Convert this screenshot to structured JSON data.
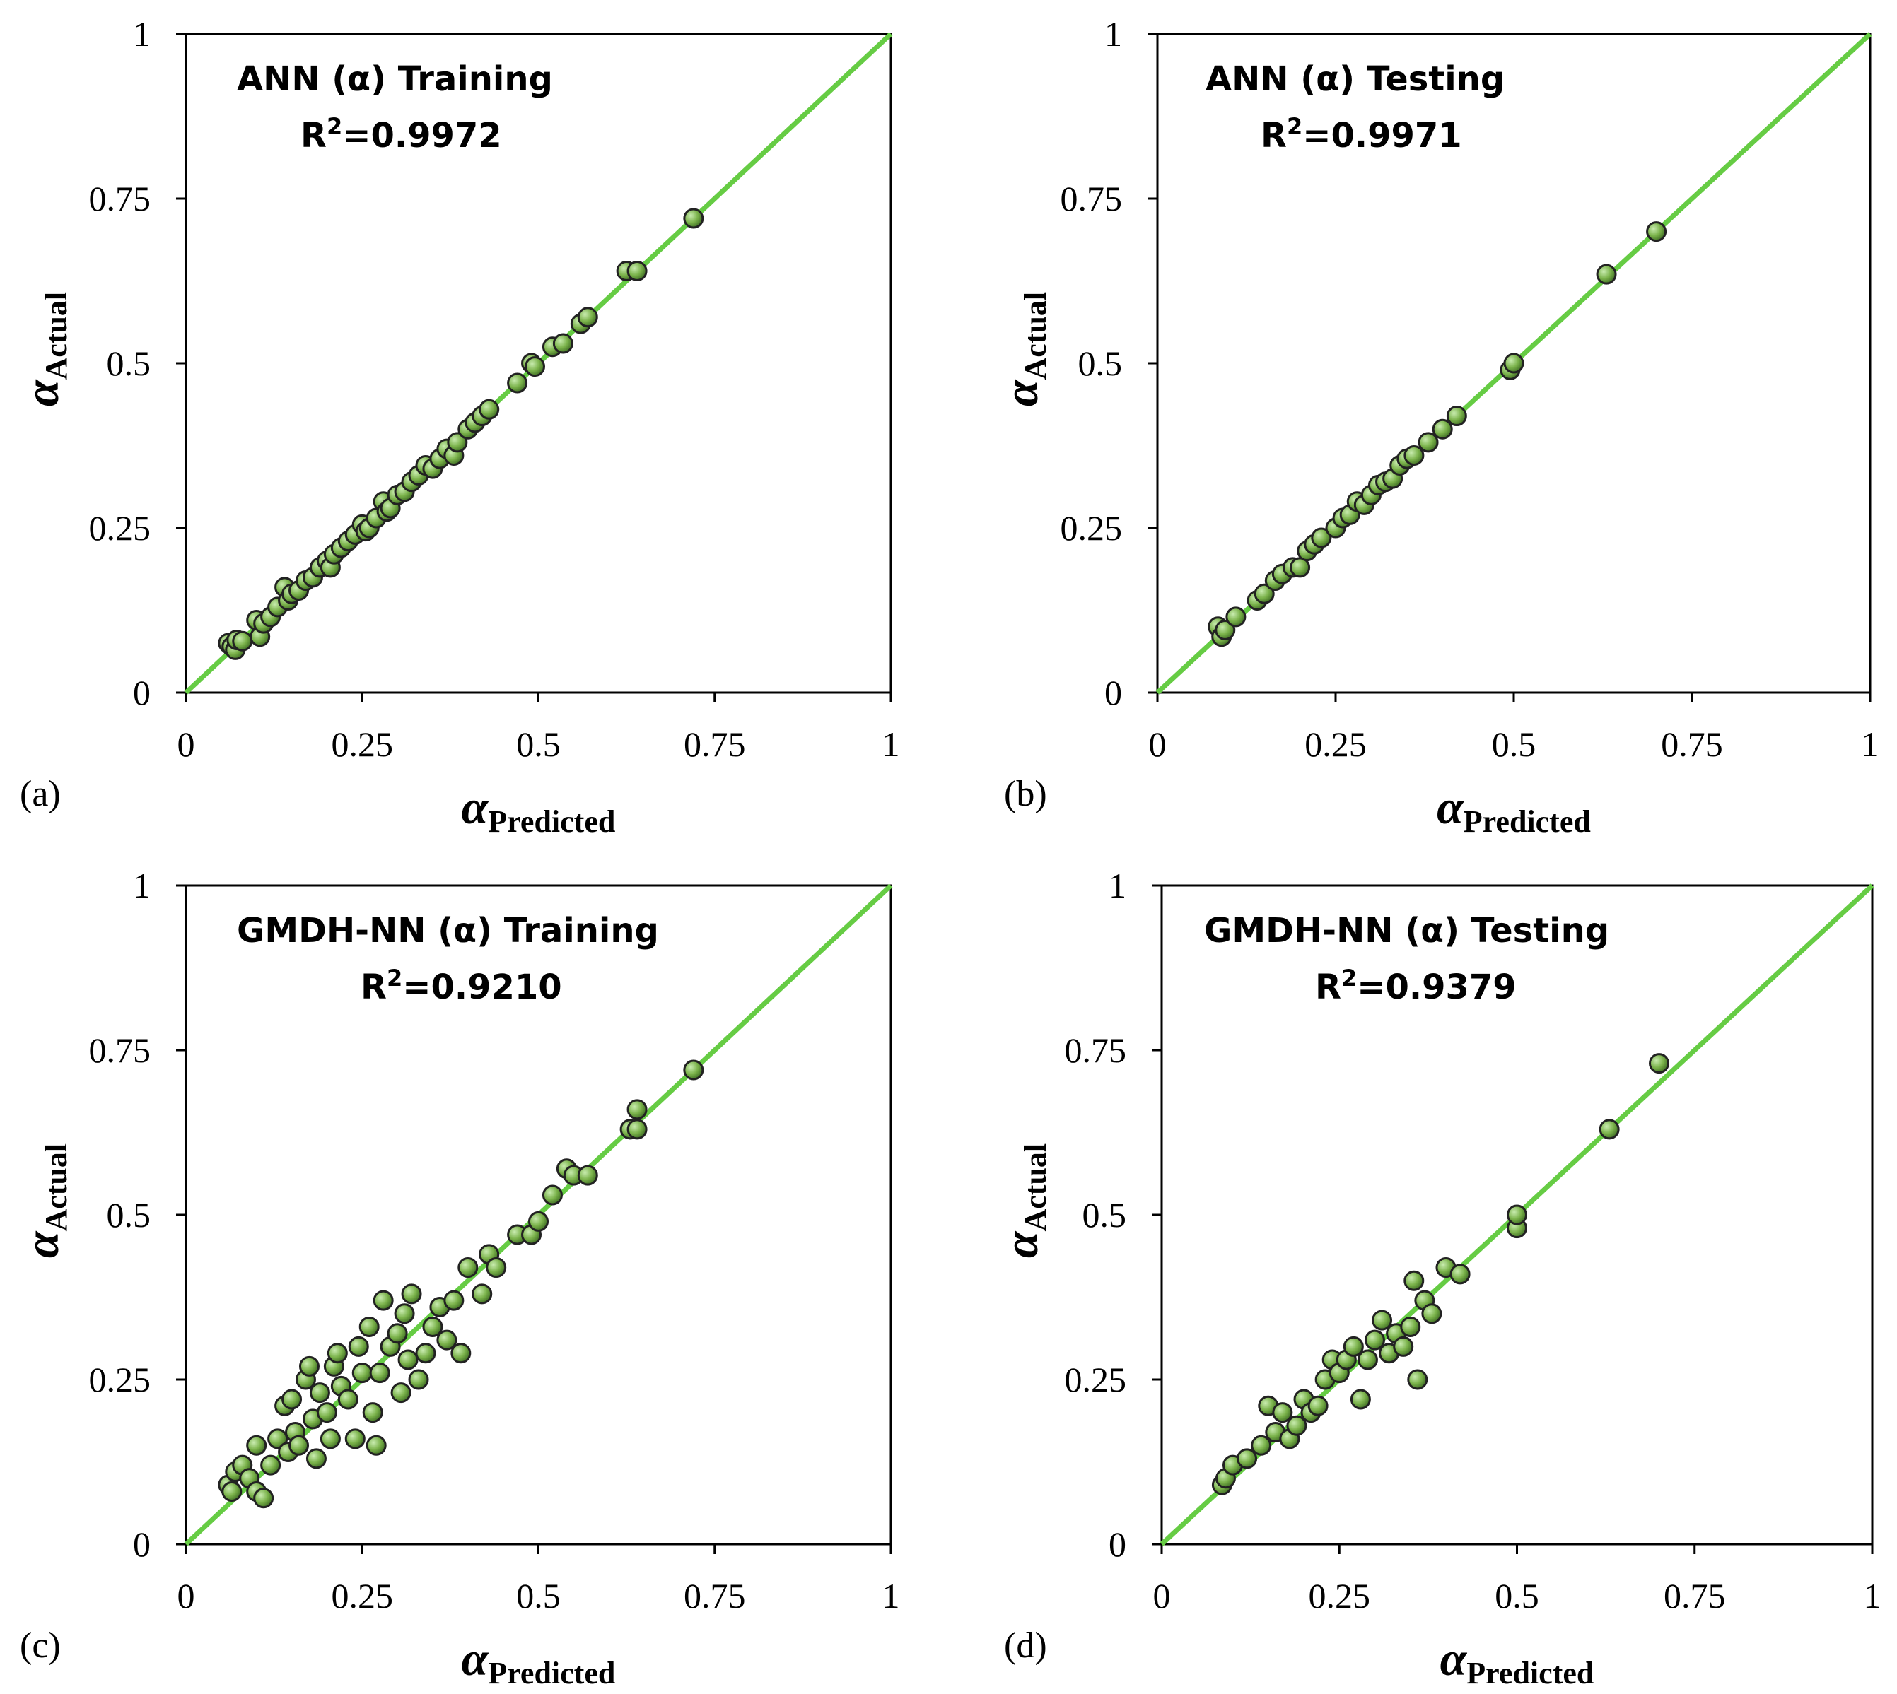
{
  "colors": {
    "ideal_line": "#66cc44",
    "marker_fill": "#7ab24a",
    "marker_edge": "#222222",
    "frame": "#000000"
  },
  "chart_data": [
    {
      "type": "scatter",
      "panel_label": "(a)",
      "title": "ANN (α) Training",
      "r2_label": "R",
      "r2_sup": "2",
      "r2_value": "=0.9972",
      "xlabel_symbol": "α",
      "xlabel_sub": "Predicted",
      "ylabel_symbol": "α",
      "ylabel_sub": "Actual",
      "xlim": [
        0,
        1
      ],
      "ylim": [
        0,
        1
      ],
      "xticks": [
        "0",
        "0.25",
        "0.5",
        "0.75",
        "1"
      ],
      "yticks": [
        "0",
        "0.25",
        "0.5",
        "0.75",
        "1"
      ],
      "reference_line": "y = x",
      "points": [
        [
          0.06,
          0.075
        ],
        [
          0.065,
          0.07
        ],
        [
          0.07,
          0.065
        ],
        [
          0.072,
          0.08
        ],
        [
          0.08,
          0.078
        ],
        [
          0.1,
          0.11
        ],
        [
          0.105,
          0.085
        ],
        [
          0.11,
          0.105
        ],
        [
          0.12,
          0.115
        ],
        [
          0.13,
          0.13
        ],
        [
          0.14,
          0.16
        ],
        [
          0.145,
          0.14
        ],
        [
          0.15,
          0.15
        ],
        [
          0.16,
          0.155
        ],
        [
          0.17,
          0.17
        ],
        [
          0.18,
          0.175
        ],
        [
          0.19,
          0.19
        ],
        [
          0.2,
          0.2
        ],
        [
          0.205,
          0.19
        ],
        [
          0.21,
          0.21
        ],
        [
          0.22,
          0.22
        ],
        [
          0.23,
          0.23
        ],
        [
          0.24,
          0.24
        ],
        [
          0.25,
          0.255
        ],
        [
          0.255,
          0.245
        ],
        [
          0.26,
          0.25
        ],
        [
          0.27,
          0.265
        ],
        [
          0.28,
          0.29
        ],
        [
          0.285,
          0.275
        ],
        [
          0.29,
          0.28
        ],
        [
          0.3,
          0.3
        ],
        [
          0.31,
          0.305
        ],
        [
          0.32,
          0.32
        ],
        [
          0.33,
          0.33
        ],
        [
          0.34,
          0.345
        ],
        [
          0.35,
          0.34
        ],
        [
          0.36,
          0.355
        ],
        [
          0.37,
          0.37
        ],
        [
          0.38,
          0.36
        ],
        [
          0.385,
          0.38
        ],
        [
          0.4,
          0.4
        ],
        [
          0.41,
          0.41
        ],
        [
          0.42,
          0.42
        ],
        [
          0.43,
          0.43
        ],
        [
          0.47,
          0.47
        ],
        [
          0.49,
          0.5
        ],
        [
          0.495,
          0.495
        ],
        [
          0.52,
          0.525
        ],
        [
          0.535,
          0.53
        ],
        [
          0.56,
          0.56
        ],
        [
          0.57,
          0.57
        ],
        [
          0.625,
          0.64
        ],
        [
          0.64,
          0.64
        ],
        [
          0.72,
          0.72
        ]
      ]
    },
    {
      "type": "scatter",
      "panel_label": "(b)",
      "title": "ANN (α) Testing",
      "r2_label": "R",
      "r2_sup": "2",
      "r2_value": "=0.9971",
      "xlabel_symbol": "α",
      "xlabel_sub": "Predicted",
      "ylabel_symbol": "α",
      "ylabel_sub": "Actual",
      "xlim": [
        0,
        1
      ],
      "ylim": [
        0,
        1
      ],
      "xticks": [
        "0",
        "0.25",
        "0.5",
        "0.75",
        "1"
      ],
      "yticks": [
        "0",
        "0.25",
        "0.5",
        "0.75",
        "1"
      ],
      "reference_line": "y = x",
      "points": [
        [
          0.085,
          0.1
        ],
        [
          0.09,
          0.085
        ],
        [
          0.095,
          0.095
        ],
        [
          0.11,
          0.115
        ],
        [
          0.14,
          0.14
        ],
        [
          0.15,
          0.15
        ],
        [
          0.165,
          0.17
        ],
        [
          0.175,
          0.18
        ],
        [
          0.19,
          0.19
        ],
        [
          0.2,
          0.19
        ],
        [
          0.21,
          0.215
        ],
        [
          0.22,
          0.225
        ],
        [
          0.23,
          0.235
        ],
        [
          0.25,
          0.25
        ],
        [
          0.26,
          0.265
        ],
        [
          0.27,
          0.27
        ],
        [
          0.28,
          0.29
        ],
        [
          0.29,
          0.285
        ],
        [
          0.3,
          0.3
        ],
        [
          0.31,
          0.315
        ],
        [
          0.32,
          0.32
        ],
        [
          0.33,
          0.325
        ],
        [
          0.34,
          0.345
        ],
        [
          0.35,
          0.355
        ],
        [
          0.36,
          0.36
        ],
        [
          0.38,
          0.38
        ],
        [
          0.4,
          0.4
        ],
        [
          0.42,
          0.42
        ],
        [
          0.495,
          0.49
        ],
        [
          0.5,
          0.5
        ],
        [
          0.63,
          0.635
        ],
        [
          0.7,
          0.7
        ]
      ]
    },
    {
      "type": "scatter",
      "panel_label": "(c)",
      "title": "GMDH-NN (α) Training",
      "r2_label": "R",
      "r2_sup": "2",
      "r2_value": "=0.9210",
      "xlabel_symbol": "α",
      "xlabel_sub": "Predicted",
      "ylabel_symbol": "α",
      "ylabel_sub": "Actual",
      "xlim": [
        0,
        1
      ],
      "ylim": [
        0,
        1
      ],
      "xticks": [
        "0",
        "0.25",
        "0.5",
        "0.75",
        "1"
      ],
      "yticks": [
        "0",
        "0.25",
        "0.5",
        "0.75",
        "1"
      ],
      "reference_line": "y = x",
      "points": [
        [
          0.06,
          0.09
        ],
        [
          0.065,
          0.08
        ],
        [
          0.07,
          0.11
        ],
        [
          0.08,
          0.12
        ],
        [
          0.09,
          0.1
        ],
        [
          0.1,
          0.15
        ],
        [
          0.1,
          0.08
        ],
        [
          0.11,
          0.07
        ],
        [
          0.12,
          0.12
        ],
        [
          0.13,
          0.16
        ],
        [
          0.14,
          0.21
        ],
        [
          0.145,
          0.14
        ],
        [
          0.15,
          0.22
        ],
        [
          0.155,
          0.17
        ],
        [
          0.16,
          0.15
        ],
        [
          0.17,
          0.25
        ],
        [
          0.175,
          0.27
        ],
        [
          0.18,
          0.19
        ],
        [
          0.185,
          0.13
        ],
        [
          0.19,
          0.23
        ],
        [
          0.2,
          0.2
        ],
        [
          0.205,
          0.16
        ],
        [
          0.21,
          0.27
        ],
        [
          0.215,
          0.29
        ],
        [
          0.22,
          0.24
        ],
        [
          0.23,
          0.22
        ],
        [
          0.24,
          0.16
        ],
        [
          0.245,
          0.3
        ],
        [
          0.25,
          0.26
        ],
        [
          0.26,
          0.33
        ],
        [
          0.265,
          0.2
        ],
        [
          0.27,
          0.15
        ],
        [
          0.275,
          0.26
        ],
        [
          0.28,
          0.37
        ],
        [
          0.29,
          0.3
        ],
        [
          0.3,
          0.32
        ],
        [
          0.305,
          0.23
        ],
        [
          0.31,
          0.35
        ],
        [
          0.315,
          0.28
        ],
        [
          0.32,
          0.38
        ],
        [
          0.33,
          0.25
        ],
        [
          0.34,
          0.29
        ],
        [
          0.35,
          0.33
        ],
        [
          0.36,
          0.36
        ],
        [
          0.37,
          0.31
        ],
        [
          0.38,
          0.37
        ],
        [
          0.39,
          0.29
        ],
        [
          0.4,
          0.42
        ],
        [
          0.42,
          0.38
        ],
        [
          0.43,
          0.44
        ],
        [
          0.44,
          0.42
        ],
        [
          0.47,
          0.47
        ],
        [
          0.49,
          0.47
        ],
        [
          0.5,
          0.49
        ],
        [
          0.52,
          0.53
        ],
        [
          0.54,
          0.57
        ],
        [
          0.55,
          0.56
        ],
        [
          0.57,
          0.56
        ],
        [
          0.63,
          0.63
        ],
        [
          0.64,
          0.66
        ],
        [
          0.64,
          0.63
        ],
        [
          0.72,
          0.72
        ]
      ]
    },
    {
      "type": "scatter",
      "panel_label": "(d)",
      "title": "GMDH-NN (α) Testing",
      "r2_label": "R",
      "r2_sup": "2",
      "r2_value": "=0.9379",
      "xlabel_symbol": "α",
      "xlabel_sub": "Predicted",
      "ylabel_symbol": "α",
      "ylabel_sub": "Actual",
      "xlim": [
        0,
        1
      ],
      "ylim": [
        0,
        1
      ],
      "xticks": [
        "0",
        "0.25",
        "0.5",
        "0.75",
        "1"
      ],
      "yticks": [
        "0",
        "0.25",
        "0.5",
        "0.75",
        "1"
      ],
      "reference_line": "y = x",
      "points": [
        [
          0.085,
          0.09
        ],
        [
          0.09,
          0.1
        ],
        [
          0.1,
          0.12
        ],
        [
          0.12,
          0.13
        ],
        [
          0.14,
          0.15
        ],
        [
          0.15,
          0.21
        ],
        [
          0.16,
          0.17
        ],
        [
          0.17,
          0.2
        ],
        [
          0.18,
          0.16
        ],
        [
          0.19,
          0.18
        ],
        [
          0.2,
          0.22
        ],
        [
          0.21,
          0.2
        ],
        [
          0.22,
          0.21
        ],
        [
          0.23,
          0.25
        ],
        [
          0.24,
          0.28
        ],
        [
          0.25,
          0.26
        ],
        [
          0.26,
          0.28
        ],
        [
          0.27,
          0.3
        ],
        [
          0.28,
          0.22
        ],
        [
          0.29,
          0.28
        ],
        [
          0.3,
          0.31
        ],
        [
          0.31,
          0.34
        ],
        [
          0.32,
          0.29
        ],
        [
          0.33,
          0.32
        ],
        [
          0.34,
          0.3
        ],
        [
          0.35,
          0.33
        ],
        [
          0.355,
          0.4
        ],
        [
          0.36,
          0.25
        ],
        [
          0.37,
          0.37
        ],
        [
          0.38,
          0.35
        ],
        [
          0.4,
          0.42
        ],
        [
          0.42,
          0.41
        ],
        [
          0.5,
          0.48
        ],
        [
          0.5,
          0.5
        ],
        [
          0.63,
          0.63
        ],
        [
          0.7,
          0.73
        ]
      ]
    }
  ]
}
